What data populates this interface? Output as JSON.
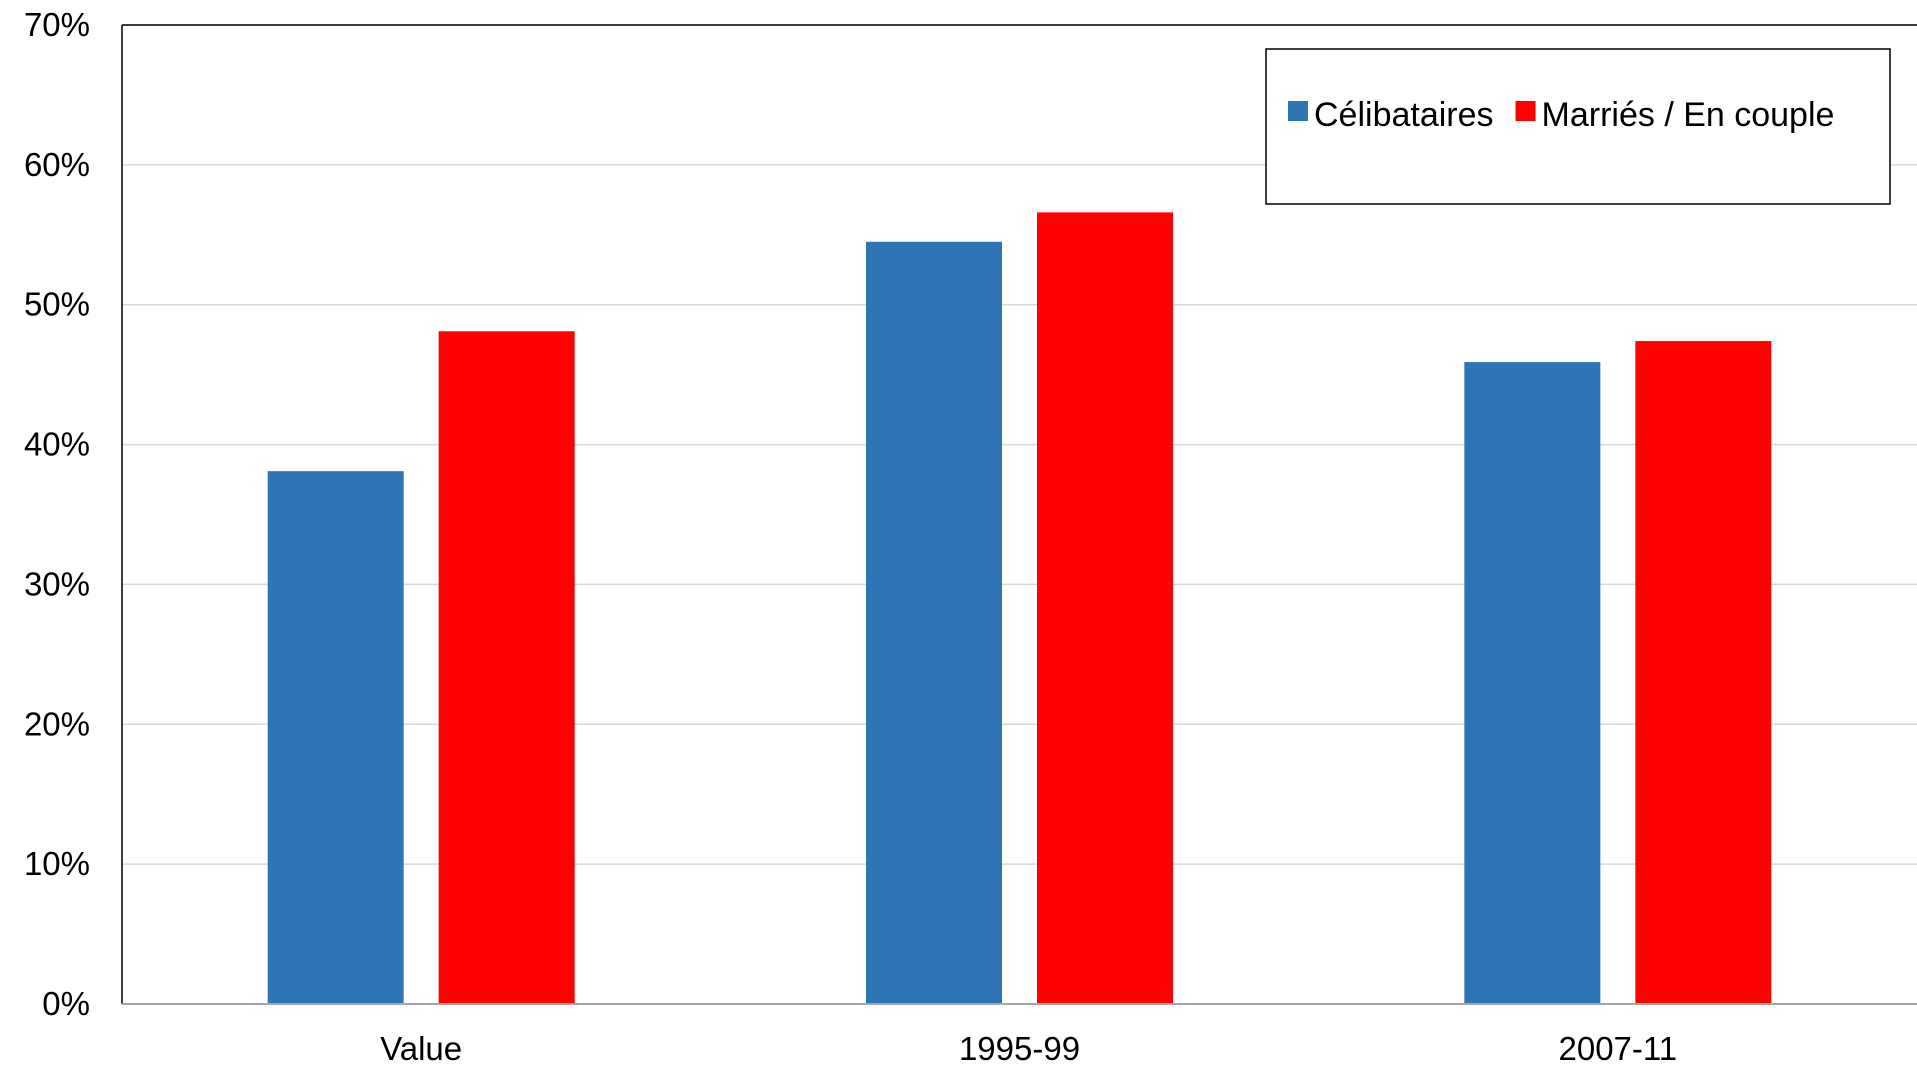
{
  "chart_data": {
    "type": "bar",
    "title": "",
    "xlabel": "",
    "ylabel": "",
    "categories": [
      "Value",
      "1995-99",
      "2007-11"
    ],
    "series": [
      {
        "name": "Célibataires",
        "color": "#2E75B6",
        "values": [
          0.381,
          0.545,
          0.459
        ]
      },
      {
        "name": "Marriés / En couple",
        "color": "#FF0000",
        "values": [
          0.481,
          0.566,
          0.474
        ]
      }
    ],
    "ylim": [
      0,
      0.7
    ],
    "yticks": [
      0,
      0.1,
      0.2,
      0.3,
      0.4,
      0.5,
      0.6,
      0.7
    ],
    "ytick_labels": [
      "0%",
      "10%",
      "20%",
      "30%",
      "40%",
      "50%",
      "60%",
      "70%"
    ],
    "grid": true,
    "legend_position": "top-right"
  }
}
